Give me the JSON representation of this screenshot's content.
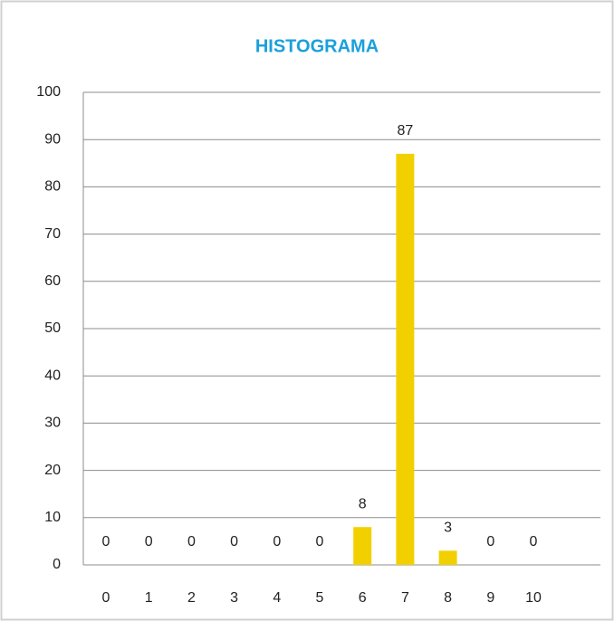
{
  "chart_data": {
    "type": "bar",
    "title": "HISTOGRAMA",
    "categories": [
      "0",
      "1",
      "2",
      "3",
      "4",
      "5",
      "6",
      "7",
      "8",
      "9",
      "10"
    ],
    "values": [
      0,
      0,
      0,
      0,
      0,
      0,
      8,
      87,
      3,
      0,
      0
    ],
    "color": "#f2d000",
    "ylim": [
      0,
      100
    ],
    "yticks": [
      0,
      10,
      20,
      30,
      40,
      50,
      60,
      70,
      80,
      90,
      100
    ],
    "grid": true
  }
}
